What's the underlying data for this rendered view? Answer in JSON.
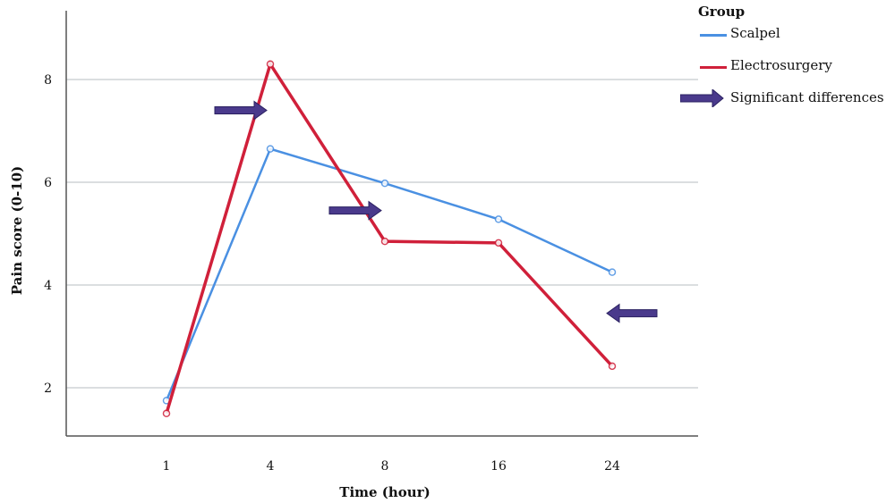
{
  "chart_data": {
    "type": "line",
    "xlabel": "Time (hour)",
    "ylabel": "Pain score (0-10)",
    "categories": [
      "1",
      "4",
      "8",
      "16",
      "24"
    ],
    "yticks": [
      2,
      4,
      6,
      8
    ],
    "ylim": [
      1.2,
      9.4
    ],
    "grid": true,
    "legend_position": "top-right",
    "legend_title": "Group",
    "series": [
      {
        "name": "Scalpel",
        "color": "#4a90e2",
        "values": [
          1.75,
          6.65,
          5.98,
          5.28,
          4.25
        ]
      },
      {
        "name": "Electrosurgery",
        "color": "#d0203a",
        "values": [
          1.5,
          8.3,
          4.85,
          4.82,
          2.42
        ]
      }
    ],
    "arrow_legend_label": "Significant differences",
    "arrow_color": "#4a3a8c",
    "significance_arrows": [
      {
        "category": "4",
        "direction": "right",
        "y": 7.4
      },
      {
        "category": "8",
        "direction": "right",
        "y": 5.45
      },
      {
        "category": "24",
        "direction": "left",
        "y": 3.45
      }
    ]
  }
}
